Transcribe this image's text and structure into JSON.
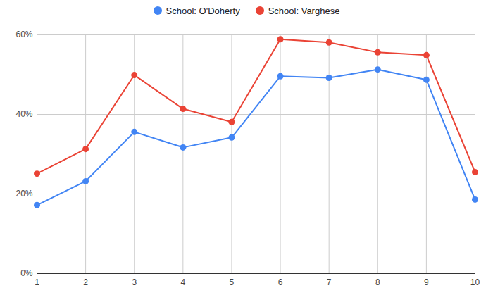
{
  "chart_data": {
    "type": "line",
    "x": [
      1,
      2,
      3,
      4,
      5,
      6,
      7,
      8,
      9,
      10
    ],
    "series": [
      {
        "name": "School: O'Doherty",
        "color": "#4285f4",
        "marker": "circle",
        "values": [
          17.2,
          23.2,
          35.6,
          31.7,
          34.2,
          49.6,
          49.2,
          51.3,
          48.7,
          18.6
        ]
      },
      {
        "name": "School: Varghese",
        "color": "#ea4335",
        "marker": "circle",
        "values": [
          25.1,
          31.3,
          49.9,
          41.4,
          38.1,
          58.9,
          58.1,
          55.6,
          54.9,
          25.5
        ]
      }
    ],
    "xlim": [
      1,
      10
    ],
    "xticks": [
      1,
      2,
      3,
      4,
      5,
      6,
      7,
      8,
      9,
      10
    ],
    "ylim": [
      0,
      60
    ],
    "yticks": [
      {
        "value": 0,
        "label": "0%"
      },
      {
        "value": 20,
        "label": "20%"
      },
      {
        "value": 40,
        "label": "40%"
      },
      {
        "value": 60,
        "label": "60%"
      }
    ],
    "grid": true,
    "legend": "top"
  }
}
